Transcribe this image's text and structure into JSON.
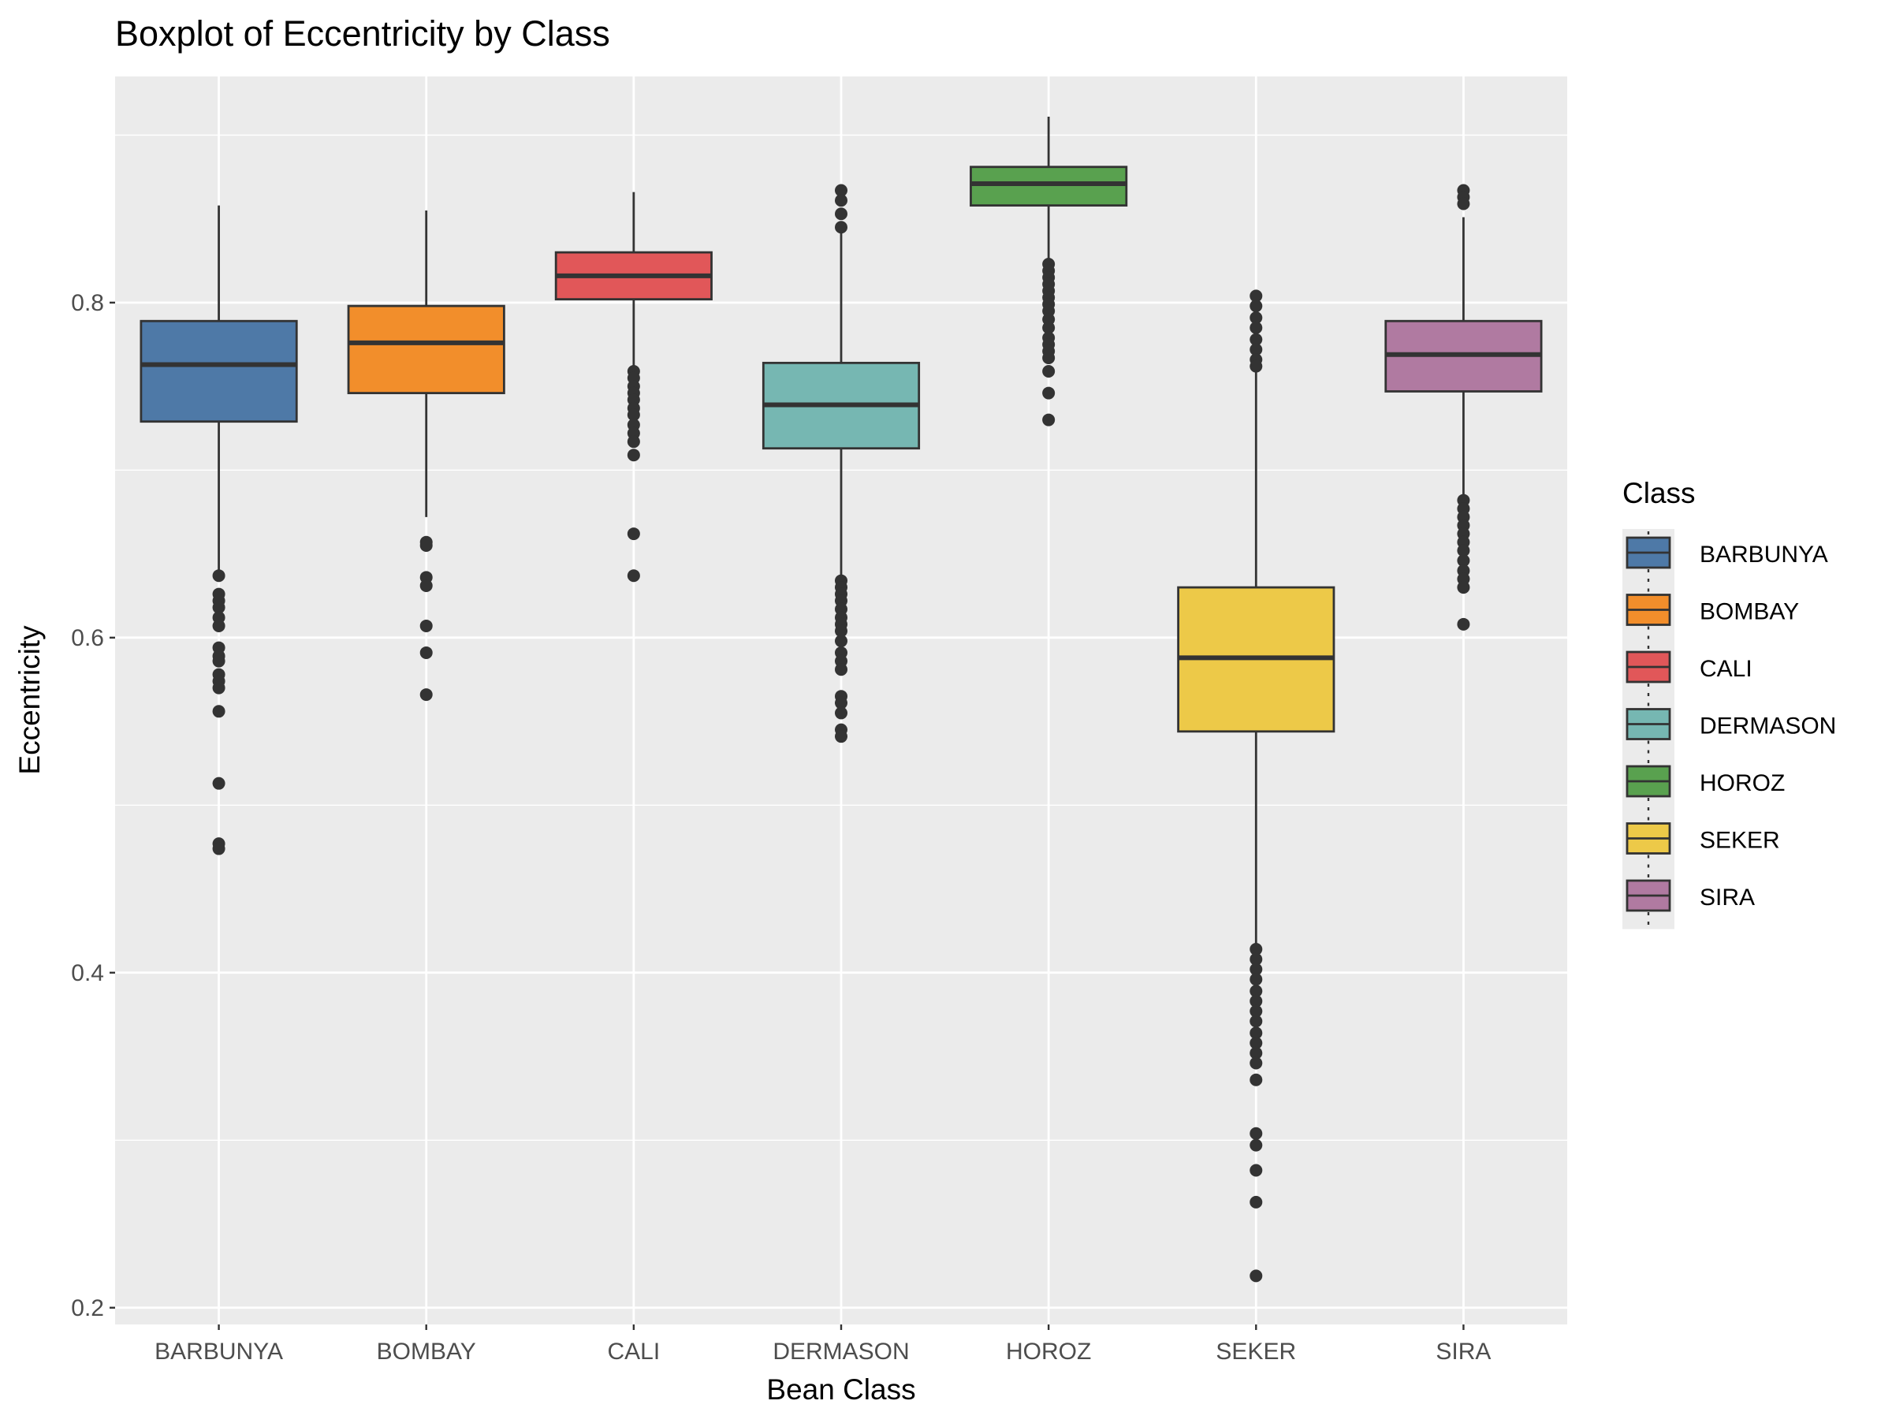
{
  "chart_data": {
    "type": "boxplot",
    "title": "Boxplot of Eccentricity by Class",
    "xlabel": "Bean Class",
    "ylabel": "Eccentricity",
    "ylim": [
      0.19,
      0.935
    ],
    "yticks": [
      0.2,
      0.4,
      0.6,
      0.8
    ],
    "ytick_labels": [
      "0.2",
      "0.4",
      "0.6",
      "0.8"
    ],
    "grid": true,
    "legend": {
      "title": "Class",
      "position": "right"
    },
    "categories": [
      "BARBUNYA",
      "BOMBAY",
      "CALI",
      "DERMASON",
      "HOROZ",
      "SEKER",
      "SIRA"
    ],
    "series": [
      {
        "name": "BARBUNYA",
        "color": "#4E79A7",
        "whisker_low": 0.638,
        "q1": 0.729,
        "median": 0.763,
        "q3": 0.789,
        "whisker_high": 0.858,
        "outliers": [
          0.637,
          0.626,
          0.622,
          0.618,
          0.612,
          0.607,
          0.594,
          0.589,
          0.586,
          0.578,
          0.574,
          0.57,
          0.556,
          0.513,
          0.477,
          0.474
        ]
      },
      {
        "name": "BOMBAY",
        "color": "#F28E2B",
        "whisker_low": 0.672,
        "q1": 0.746,
        "median": 0.776,
        "q3": 0.798,
        "whisker_high": 0.855,
        "outliers": [
          0.657,
          0.655,
          0.636,
          0.631,
          0.607,
          0.591,
          0.566
        ]
      },
      {
        "name": "CALI",
        "color": "#E15759",
        "whisker_low": 0.762,
        "q1": 0.802,
        "median": 0.816,
        "q3": 0.83,
        "whisker_high": 0.866,
        "outliers": [
          0.759,
          0.755,
          0.75,
          0.746,
          0.742,
          0.737,
          0.733,
          0.727,
          0.722,
          0.717,
          0.709,
          0.662,
          0.637
        ]
      },
      {
        "name": "DERMASON",
        "color": "#76B7B2",
        "whisker_low": 0.636,
        "q1": 0.713,
        "median": 0.739,
        "q3": 0.764,
        "whisker_high": 0.843,
        "outliers": [
          0.867,
          0.861,
          0.853,
          0.845,
          0.634,
          0.63,
          0.626,
          0.622,
          0.617,
          0.612,
          0.608,
          0.604,
          0.598,
          0.591,
          0.586,
          0.581,
          0.565,
          0.561,
          0.555,
          0.545,
          0.541
        ]
      },
      {
        "name": "HOROZ",
        "color": "#59A14F",
        "whisker_low": 0.825,
        "q1": 0.858,
        "median": 0.871,
        "q3": 0.881,
        "whisker_high": 0.911,
        "outliers": [
          0.823,
          0.819,
          0.815,
          0.811,
          0.807,
          0.803,
          0.799,
          0.795,
          0.79,
          0.785,
          0.779,
          0.775,
          0.771,
          0.767,
          0.759,
          0.746,
          0.73
        ]
      },
      {
        "name": "SEKER",
        "color": "#EDC948",
        "whisker_low": 0.416,
        "q1": 0.544,
        "median": 0.588,
        "q3": 0.63,
        "whisker_high": 0.759,
        "outliers": [
          0.804,
          0.798,
          0.791,
          0.785,
          0.778,
          0.772,
          0.766,
          0.762,
          0.414,
          0.408,
          0.402,
          0.396,
          0.389,
          0.383,
          0.377,
          0.371,
          0.364,
          0.358,
          0.352,
          0.346,
          0.336,
          0.304,
          0.297,
          0.282,
          0.263,
          0.219
        ]
      },
      {
        "name": "SIRA",
        "color": "#B07AA1",
        "whisker_low": 0.684,
        "q1": 0.747,
        "median": 0.769,
        "q3": 0.789,
        "whisker_high": 0.851,
        "outliers": [
          0.867,
          0.863,
          0.859,
          0.682,
          0.677,
          0.672,
          0.667,
          0.662,
          0.657,
          0.652,
          0.646,
          0.64,
          0.635,
          0.63,
          0.608
        ]
      }
    ]
  }
}
